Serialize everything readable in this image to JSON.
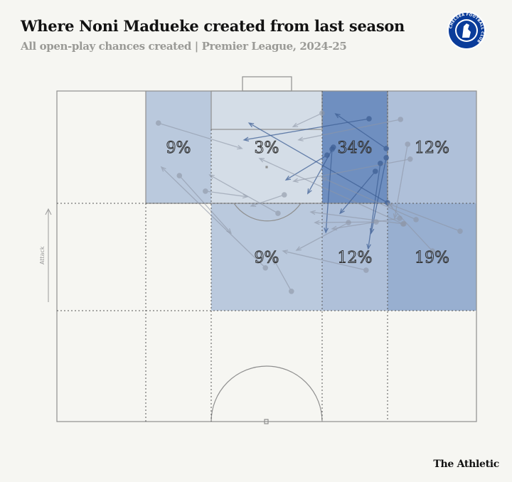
{
  "header": {
    "title": "Where Noni Madueke created from last season",
    "subtitle": "All open-play chances created | Premier League, 2024-25",
    "crest_text": "CHELSEA FOOTBALL CLUB"
  },
  "brand": "The Athletic",
  "attack_label": "Attack",
  "colors": {
    "background": "#f6f6f2",
    "zone_max": "#6f8fc0",
    "arrow": "#8e96a6",
    "arrow_dark": "#3e5f95"
  },
  "chart_data": {
    "type": "pitch-zones",
    "title": "Where Noni Madueke created from last season",
    "units": "pitch percent: x 0-100 across width (left to right), y 0-100 from opponent goal line to halfway line",
    "zones": [
      {
        "id": "box-left",
        "label": "9%",
        "value": 9,
        "col": 1,
        "row": 0
      },
      {
        "id": "box-centre",
        "label": "3%",
        "value": 3,
        "col": 2,
        "row": 0
      },
      {
        "id": "box-right",
        "label": "34%",
        "value": 34,
        "col": 3,
        "row": 0
      },
      {
        "id": "wide-right-final",
        "label": "12%",
        "value": 12,
        "col": 4,
        "row": 0
      },
      {
        "id": "zone14",
        "label": "9%",
        "value": 9,
        "col": 2,
        "row": 1
      },
      {
        "id": "half-space-right",
        "label": "12%",
        "value": 12,
        "col": 3,
        "row": 1
      },
      {
        "id": "wide-right",
        "label": "19%",
        "value": 19,
        "col": 4,
        "row": 1
      }
    ],
    "passes": [
      [
        24.2,
        9.7,
        44.1,
        17.4
      ],
      [
        29.2,
        25.6,
        41.5,
        43.0
      ],
      [
        49.7,
        53.5,
        24.9,
        23.0
      ],
      [
        35.4,
        30.3,
        45.4,
        32.0
      ],
      [
        52.7,
        37.0,
        36.4,
        25.4
      ],
      [
        54.2,
        31.4,
        46.3,
        34.8
      ],
      [
        63.2,
        6.7,
        56.3,
        10.8
      ],
      [
        74.4,
        8.4,
        44.6,
        14.8
      ],
      [
        81.9,
        8.6,
        57.6,
        14.8
      ],
      [
        78.8,
        33.8,
        45.8,
        9.7
      ],
      [
        78.5,
        17.4,
        66.4,
        6.9
      ],
      [
        65.9,
        17.0,
        59.8,
        31.0
      ],
      [
        64.4,
        19.4,
        54.6,
        26.9
      ],
      [
        84.2,
        20.6,
        56.4,
        27.3
      ],
      [
        82.5,
        40.2,
        48.3,
        20.4
      ],
      [
        78.5,
        20.2,
        74.9,
        43.0
      ],
      [
        77.1,
        21.9,
        74.2,
        47.7
      ],
      [
        75.9,
        24.3,
        67.5,
        37.0
      ],
      [
        65.6,
        17.6,
        64.1,
        42.8
      ],
      [
        83.6,
        16.1,
        80.5,
        38.5
      ],
      [
        96.1,
        42.4,
        79.2,
        34.2
      ],
      [
        85.6,
        38.9,
        63.2,
        26.2
      ],
      [
        69.5,
        39.8,
        57.1,
        48.2
      ],
      [
        76.1,
        39.6,
        61.5,
        39.8
      ],
      [
        81.7,
        38.5,
        65.6,
        41.7
      ],
      [
        73.7,
        54.2,
        53.9,
        48.4
      ],
      [
        55.9,
        60.6,
        51.7,
        51.0
      ],
      [
        89.5,
        48.4,
        78.8,
        33.8
      ],
      [
        82.7,
        40.2,
        60.5,
        36.6
      ]
    ]
  }
}
